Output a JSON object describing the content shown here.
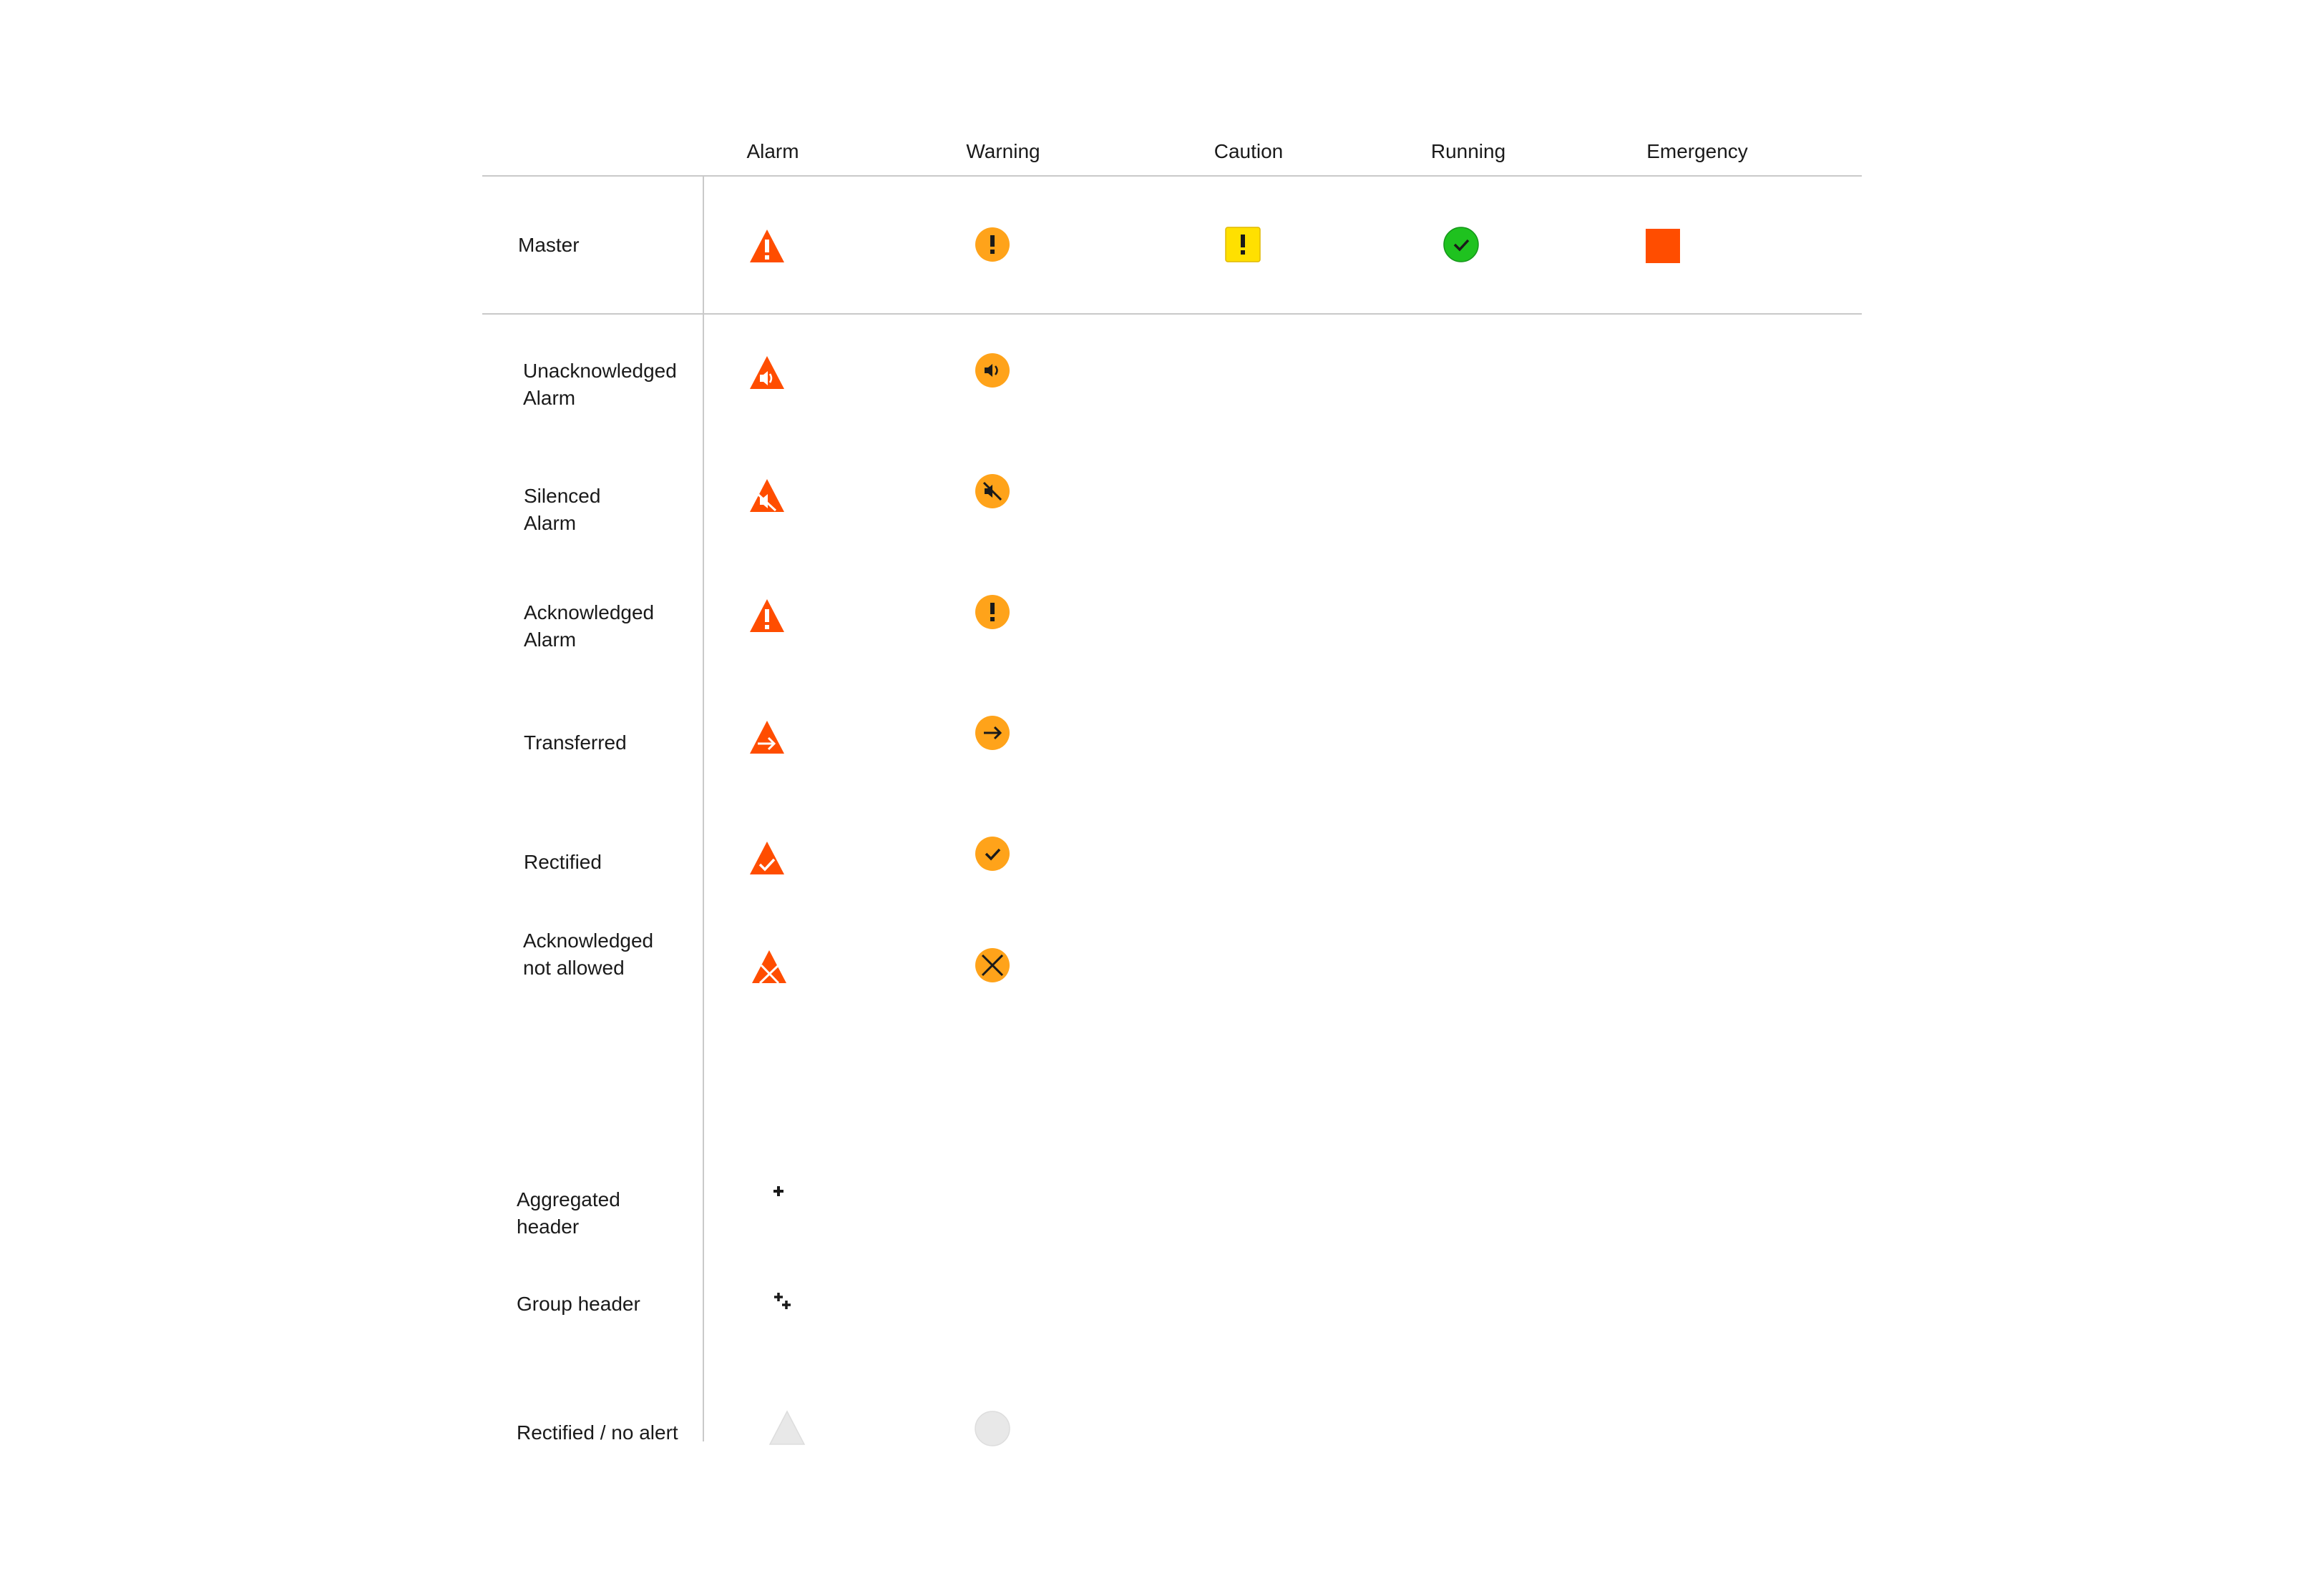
{
  "columns": {
    "alarm": "Alarm",
    "warning": "Warning",
    "caution": "Caution",
    "running": "Running",
    "emergency": "Emergency"
  },
  "rows": {
    "master": "Master",
    "unacknowledged": "Unacknowledged\nAlarm",
    "silenced": "Silenced\nAlarm",
    "acknowledged": "Acknowledged\nAlarm",
    "transferred": "Transferred",
    "rectified": "Rectified",
    "ack_not_allowed": "Acknowledged\nnot allowed",
    "aggregated_header": "Aggregated\nheader",
    "group_header": "Group header",
    "rectified_no_alert": "Rectified / no alert"
  },
  "colors": {
    "alarm": "#ff4d00",
    "warning": "#ffa31a",
    "caution": "#ffe000",
    "running": "#1fc21f",
    "emergency": "#ff4d00",
    "inactive": "#e8e8e8",
    "grid": "#c9c9c9"
  },
  "icons": {
    "alarm": [
      "alarm-master-icon",
      "alarm-unacknowledged-icon",
      "alarm-silenced-icon",
      "alarm-acknowledged-icon",
      "alarm-transferred-icon",
      "alarm-rectified-icon",
      "alarm-ack-not-allowed-icon",
      "plus-icon",
      "double-plus-icon",
      "alarm-inactive-icon"
    ],
    "warning": [
      "warning-master-icon",
      "warning-unacknowledged-icon",
      "warning-silenced-icon",
      "warning-acknowledged-icon",
      "warning-transferred-icon",
      "warning-rectified-icon",
      "warning-ack-not-allowed-icon",
      "warning-inactive-icon"
    ],
    "caution": "caution-icon",
    "running": "running-icon",
    "emergency": "emergency-icon"
  }
}
